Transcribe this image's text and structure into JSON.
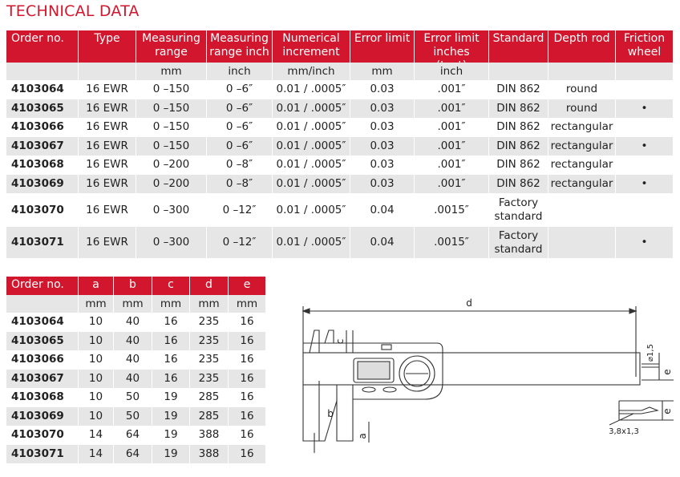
{
  "title": "TECHNICAL DATA",
  "table1": {
    "headers": [
      "Order no.",
      "Type",
      "Measuring range",
      "Measuring range inch",
      "Numerical increment",
      "Error limit",
      "Error limit inches (text)",
      "Standard",
      "Depth rod",
      "Friction wheel"
    ],
    "units": [
      null,
      null,
      "mm",
      "inch",
      "mm/inch",
      "mm",
      "inch",
      null,
      null,
      null
    ],
    "rows": [
      [
        "4103064",
        "16 EWR",
        "0 –150",
        "0 –6″",
        "0.01 / .0005″",
        "0.03",
        ".001″",
        "DIN 862",
        "round",
        null
      ],
      [
        "4103065",
        "16 EWR",
        "0 –150",
        "0 –6″",
        "0.01 / .0005″",
        "0.03",
        ".001″",
        "DIN 862",
        "round",
        "•"
      ],
      [
        "4103066",
        "16 EWR",
        "0 –150",
        "0 –6″",
        "0.01 / .0005″",
        "0.03",
        ".001″",
        "DIN 862",
        "rectangular",
        null
      ],
      [
        "4103067",
        "16 EWR",
        "0 –150",
        "0 –6″",
        "0.01 / .0005″",
        "0.03",
        ".001″",
        "DIN 862",
        "rectangular",
        "•"
      ],
      [
        "4103068",
        "16 EWR",
        "0 –200",
        "0 –8″",
        "0.01 / .0005″",
        "0.03",
        ".001″",
        "DIN 862",
        "rectangular",
        null
      ],
      [
        "4103069",
        "16 EWR",
        "0 –200",
        "0 –8″",
        "0.01 / .0005″",
        "0.03",
        ".001″",
        "DIN 862",
        "rectangular",
        "•"
      ],
      [
        "4103070",
        "16 EWR",
        "0 –300",
        "0 –12″",
        "0.01 / .0005″",
        "0.04",
        ".0015″",
        "Factory standard",
        null,
        null
      ],
      [
        "4103071",
        "16 EWR",
        "0 –300",
        "0 –12″",
        "0.01 / .0005″",
        "0.04",
        ".0015″",
        "Factory standard",
        null,
        "•"
      ]
    ]
  },
  "table2": {
    "headers": [
      "Order no.",
      "a",
      "b",
      "c",
      "d",
      "e"
    ],
    "units": [
      null,
      "mm",
      "mm",
      "mm",
      "mm",
      "mm"
    ],
    "rows": [
      [
        "4103064",
        "10",
        "40",
        "16",
        "235",
        "16"
      ],
      [
        "4103065",
        "10",
        "40",
        "16",
        "235",
        "16"
      ],
      [
        "4103066",
        "10",
        "40",
        "16",
        "235",
        "16"
      ],
      [
        "4103067",
        "10",
        "40",
        "16",
        "235",
        "16"
      ],
      [
        "4103068",
        "10",
        "50",
        "19",
        "285",
        "16"
      ],
      [
        "4103069",
        "10",
        "50",
        "19",
        "285",
        "16"
      ],
      [
        "4103070",
        "14",
        "64",
        "19",
        "388",
        "16"
      ],
      [
        "4103071",
        "14",
        "64",
        "19",
        "388",
        "16"
      ]
    ]
  },
  "diagram": {
    "labels": [
      "d",
      "c",
      "b",
      "a",
      "⌀1,5",
      "e",
      "e",
      "3,8x1,3"
    ]
  }
}
